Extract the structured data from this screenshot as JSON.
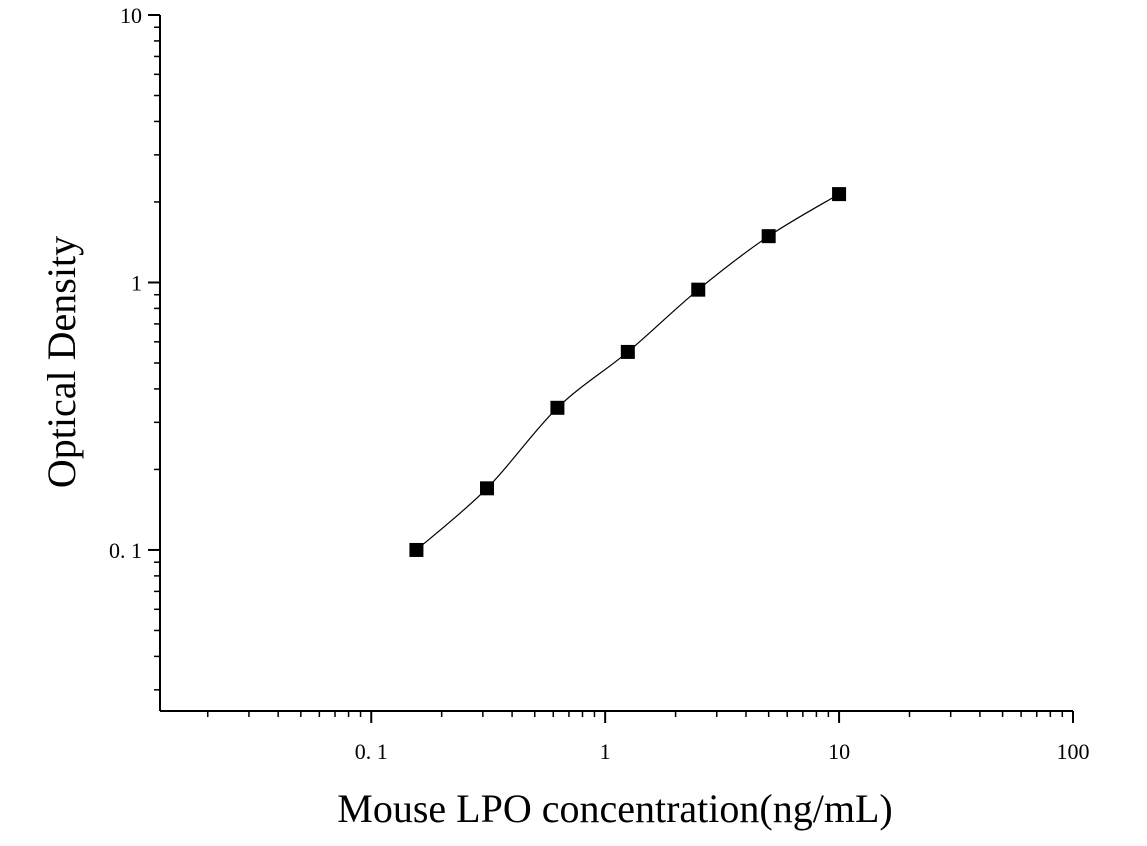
{
  "chart_data": {
    "type": "scatter",
    "title": "",
    "xlabel": "Mouse LPO concentration(ng/mL)",
    "ylabel": "Optical Density",
    "x_scale": "log",
    "y_scale": "log",
    "xlim": [
      0.0125,
      100
    ],
    "ylim": [
      0.025,
      10
    ],
    "x_ticks": [
      {
        "value": 0.1,
        "label": "0. 1"
      },
      {
        "value": 1,
        "label": "1"
      },
      {
        "value": 10,
        "label": "10"
      },
      {
        "value": 100,
        "label": "100"
      }
    ],
    "y_ticks": [
      {
        "value": 0.1,
        "label": "0. 1"
      },
      {
        "value": 1,
        "label": "1"
      },
      {
        "value": 10,
        "label": "10"
      }
    ],
    "grid": false,
    "legend": "none",
    "marker": "square",
    "marker_color": "#000000",
    "line_color": "#000000",
    "series": [
      {
        "x": [
          0.156,
          0.3125,
          0.625,
          1.25,
          2.5,
          5,
          10
        ],
        "y": [
          0.1,
          0.17,
          0.34,
          0.55,
          0.94,
          1.49,
          2.14
        ]
      }
    ]
  }
}
